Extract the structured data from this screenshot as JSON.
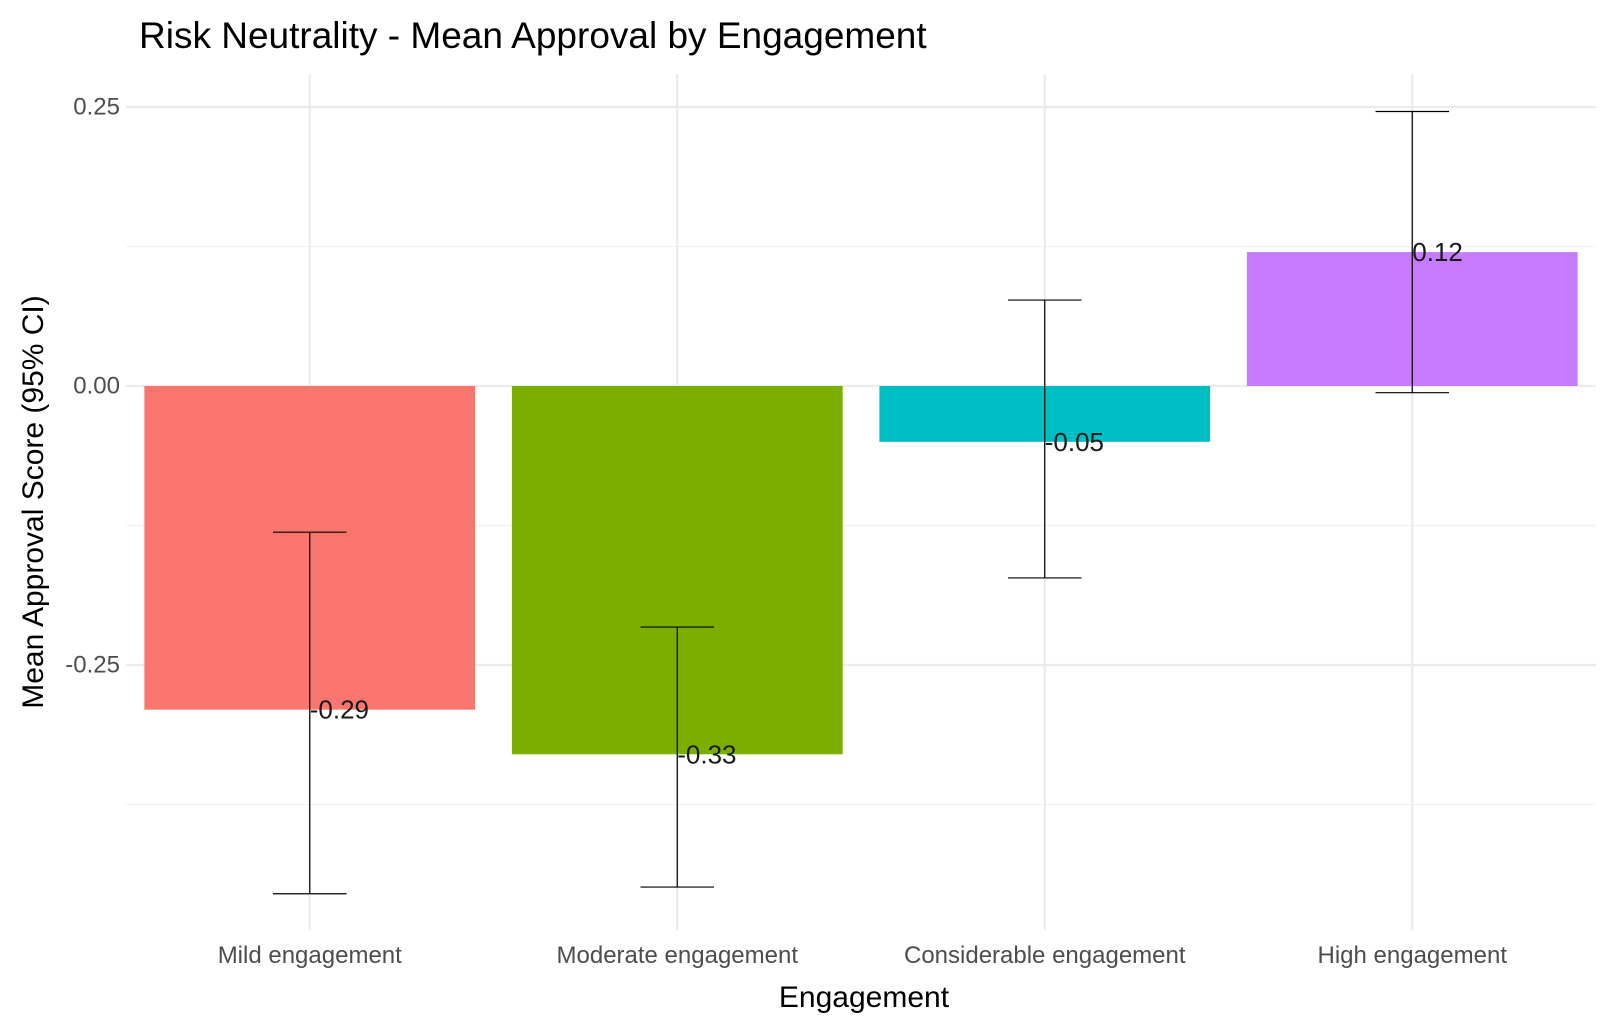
{
  "chart_data": {
    "type": "bar",
    "title": "Risk Neutrality - Mean Approval by Engagement",
    "xlabel": "Engagement",
    "ylabel": "Mean Approval Score (95% CI)",
    "categories": [
      "Mild engagement",
      "Moderate engagement",
      "Considerable engagement",
      "High engagement"
    ],
    "values": [
      -0.29,
      -0.33,
      -0.05,
      0.12
    ],
    "value_labels": [
      "-0.29",
      "-0.33",
      "-0.05",
      "0.12"
    ],
    "ci_lower": [
      -0.455,
      -0.449,
      -0.172,
      -0.006
    ],
    "ci_upper": [
      -0.131,
      -0.216,
      0.077,
      0.246
    ],
    "colors": [
      "#F8766D",
      "#7CAE00",
      "#00BFC4",
      "#C77CFF"
    ],
    "ylim": [
      -0.485,
      0.28
    ],
    "y_ticks": [
      0.25,
      0.0,
      -0.25
    ],
    "y_tick_labels": [
      "0.25",
      "0.00",
      "-0.25"
    ],
    "grid": true,
    "legend": "none"
  }
}
